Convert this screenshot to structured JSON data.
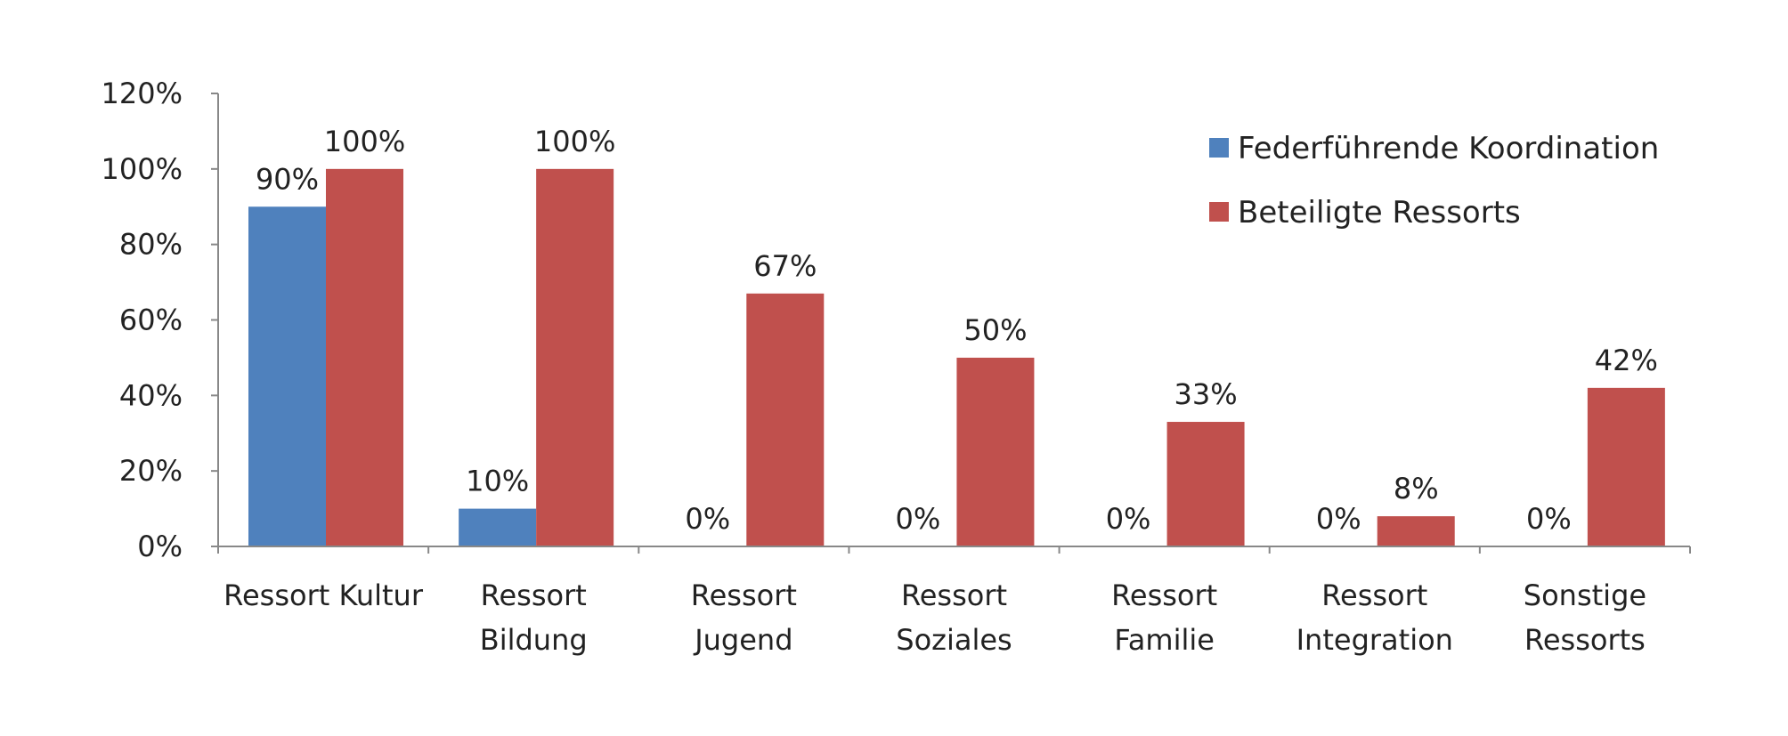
{
  "chart_data": {
    "type": "bar",
    "title": "",
    "xlabel": "",
    "ylabel": "",
    "ylim": [
      0,
      120
    ],
    "yticks": [
      "0%",
      "20%",
      "40%",
      "60%",
      "80%",
      "100%",
      "120%"
    ],
    "grid": false,
    "legend_position": "top-right",
    "categories": [
      [
        "Ressort Kultur"
      ],
      [
        "Ressort",
        "Bildung"
      ],
      [
        "Ressort",
        "Jugend"
      ],
      [
        "Ressort",
        "Soziales"
      ],
      [
        "Ressort",
        "Familie"
      ],
      [
        "Ressort",
        "Integration"
      ],
      [
        "Sonstige",
        "Ressorts"
      ]
    ],
    "series": [
      {
        "name": "Federführende Koordination",
        "color": "#4f81bd",
        "values": [
          90,
          10,
          0,
          0,
          0,
          0,
          0
        ],
        "labels": [
          "90%",
          "10%",
          "0%",
          "0%",
          "0%",
          "0%",
          "0%"
        ]
      },
      {
        "name": "Beteiligte Ressorts",
        "color": "#c0504d",
        "values": [
          100,
          100,
          67,
          50,
          33,
          8,
          42
        ],
        "labels": [
          "100%",
          "100%",
          "67%",
          "50%",
          "33%",
          "8%",
          "42%"
        ]
      }
    ]
  }
}
